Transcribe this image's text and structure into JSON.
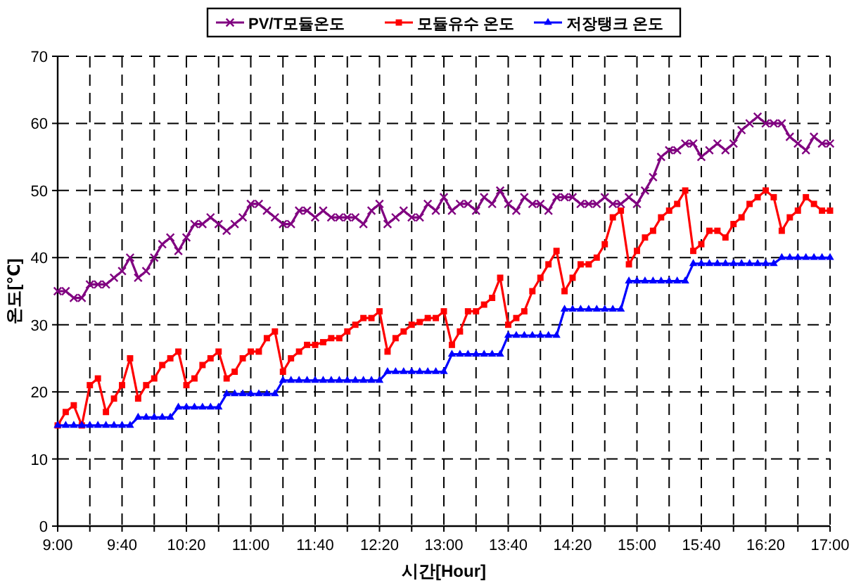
{
  "chart_data": {
    "type": "line",
    "xlabel": "시간[Hour]",
    "ylabel": "온도[℃]",
    "legend": "top",
    "grid": true,
    "line_style": "solid",
    "xlim": [
      9,
      17
    ],
    "ylim": [
      0,
      70
    ],
    "xticks": [
      {
        "value": 9,
        "label": "9:00"
      },
      {
        "value": 9.3333,
        "label": null
      },
      {
        "value": 9.6667,
        "label": "9:40"
      },
      {
        "value": 10,
        "label": null
      },
      {
        "value": 10.3333,
        "label": "10:20"
      },
      {
        "value": 10.6667,
        "label": null
      },
      {
        "value": 11,
        "label": "11:00"
      },
      {
        "value": 11.3333,
        "label": null
      },
      {
        "value": 11.6667,
        "label": "11:40"
      },
      {
        "value": 12,
        "label": null
      },
      {
        "value": 12.3333,
        "label": "12:20"
      },
      {
        "value": 12.6667,
        "label": null
      },
      {
        "value": 13,
        "label": "13:00"
      },
      {
        "value": 13.3333,
        "label": null
      },
      {
        "value": 13.6667,
        "label": "13:40"
      },
      {
        "value": 14,
        "label": null
      },
      {
        "value": 14.3333,
        "label": "14:20"
      },
      {
        "value": 14.6667,
        "label": null
      },
      {
        "value": 15,
        "label": "15:00"
      },
      {
        "value": 15.3333,
        "label": null
      },
      {
        "value": 15.6667,
        "label": "15:40"
      },
      {
        "value": 16,
        "label": null
      },
      {
        "value": 16.3333,
        "label": "16:20"
      },
      {
        "value": 16.6667,
        "label": null
      },
      {
        "value": 17,
        "label": "17:00"
      }
    ],
    "yticks": [
      0,
      10,
      20,
      30,
      40,
      50,
      60,
      70
    ],
    "x": [
      9,
      9.0833,
      9.1667,
      9.25,
      9.3333,
      9.4167,
      9.5,
      9.5833,
      9.6667,
      9.75,
      9.8333,
      9.9167,
      10,
      10.0833,
      10.1667,
      10.25,
      10.3333,
      10.4167,
      10.5,
      10.5833,
      10.6667,
      10.75,
      10.8333,
      10.9167,
      11,
      11.0833,
      11.1667,
      11.25,
      11.3333,
      11.4167,
      11.5,
      11.5833,
      11.6667,
      11.75,
      11.8333,
      11.9167,
      12,
      12.0833,
      12.1667,
      12.25,
      12.3333,
      12.4167,
      12.5,
      12.5833,
      12.6667,
      12.75,
      12.8333,
      12.9167,
      13,
      13.0833,
      13.1667,
      13.25,
      13.3333,
      13.4167,
      13.5,
      13.5833,
      13.6667,
      13.75,
      13.8333,
      13.9167,
      14,
      14.0833,
      14.1667,
      14.25,
      14.3333,
      14.4167,
      14.5,
      14.5833,
      14.6667,
      14.75,
      14.8333,
      14.9167,
      15,
      15.0833,
      15.1667,
      15.25,
      15.3333,
      15.4167,
      15.5,
      15.5833,
      15.6667,
      15.75,
      15.8333,
      15.9167,
      16,
      16.0833,
      16.1667,
      16.25,
      16.3333,
      16.4167,
      16.5,
      16.5833,
      16.6667,
      16.75,
      16.8333,
      16.9167,
      17
    ],
    "series": [
      {
        "name": "PV/T모듈온도",
        "color": "#800080",
        "marker": "cross",
        "values": [
          35,
          35,
          34,
          34,
          36,
          36,
          36,
          37,
          38,
          40,
          37,
          38,
          40,
          42,
          43,
          41,
          43,
          45,
          45,
          46,
          45,
          44,
          45,
          46,
          48,
          48,
          47,
          46,
          45,
          45,
          47,
          47,
          46,
          47,
          46,
          46,
          46,
          46,
          45,
          47,
          48,
          45,
          46,
          47,
          46,
          46,
          48,
          47,
          49,
          47,
          48,
          48,
          47,
          49,
          48,
          50,
          48,
          47,
          49,
          48,
          48,
          47,
          49,
          49,
          49,
          48,
          48,
          48,
          49,
          48,
          48,
          49,
          48,
          50,
          52,
          55,
          56,
          56,
          57,
          57,
          55,
          56,
          57,
          56,
          57,
          59,
          60,
          61,
          60,
          60,
          60,
          58,
          57,
          56,
          58,
          57,
          57
        ]
      },
      {
        "name": "모듈유수 온도",
        "color": "#ff0000",
        "marker": "square",
        "values": [
          15,
          17,
          18,
          15,
          21,
          22,
          17,
          19,
          21,
          25,
          19,
          21,
          22,
          24,
          25,
          26,
          21,
          22,
          24,
          25,
          26,
          22,
          23,
          25,
          26,
          26,
          28,
          29,
          23,
          25,
          26,
          27,
          27,
          27.4,
          28,
          28,
          29,
          30,
          31,
          31,
          32,
          26,
          28,
          29,
          30,
          30.4,
          31,
          31,
          32,
          27,
          29,
          32,
          32,
          33,
          34,
          37,
          30,
          31,
          32,
          35,
          37,
          39,
          41,
          35,
          37,
          39,
          39,
          40,
          42,
          46,
          47,
          39,
          41,
          43,
          44,
          46,
          47,
          48,
          50,
          41,
          42,
          44,
          44,
          43,
          45,
          46,
          48,
          49,
          50,
          49,
          44,
          46,
          47,
          49,
          48,
          47,
          47
        ]
      },
      {
        "name": "저장탱크 온도",
        "color": "#0000ff",
        "marker": "triangle",
        "values": [
          15,
          15,
          15,
          15,
          15,
          15,
          15,
          15,
          15,
          15,
          16.2,
          16.2,
          16.2,
          16.2,
          16.2,
          17.7,
          17.7,
          17.7,
          17.7,
          17.7,
          17.7,
          19.7,
          19.7,
          19.7,
          19.7,
          19.7,
          19.7,
          19.7,
          21.7,
          21.7,
          21.7,
          21.7,
          21.7,
          21.7,
          21.7,
          21.7,
          21.7,
          21.7,
          21.7,
          21.7,
          21.7,
          23,
          23,
          23,
          23,
          23,
          23,
          23,
          23,
          25.6,
          25.6,
          25.6,
          25.6,
          25.6,
          25.6,
          25.6,
          28.4,
          28.4,
          28.4,
          28.4,
          28.4,
          28.4,
          28.4,
          32.3,
          32.3,
          32.3,
          32.3,
          32.3,
          32.3,
          32.3,
          32.3,
          36.5,
          36.5,
          36.5,
          36.5,
          36.5,
          36.5,
          36.5,
          36.5,
          39.1,
          39.1,
          39.1,
          39.1,
          39.1,
          39.1,
          39.1,
          39.1,
          39.1,
          39.1,
          39.1,
          40,
          40,
          40,
          40,
          40,
          40,
          40
        ]
      }
    ]
  }
}
